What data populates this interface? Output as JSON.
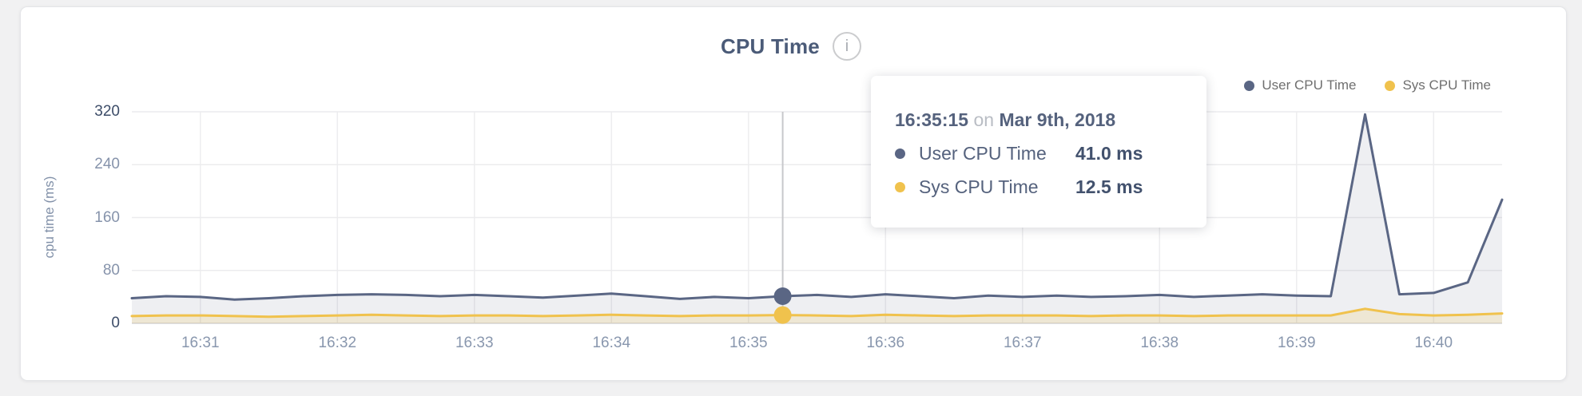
{
  "header": {
    "title": "CPU Time",
    "info_icon": "i"
  },
  "legend": {
    "items": [
      {
        "label": "User CPU Time",
        "color": "#5a6684"
      },
      {
        "label": "Sys CPU Time",
        "color": "#f0c24d"
      }
    ]
  },
  "tooltip": {
    "time": "16:35:15",
    "connector": "on",
    "date": "Mar 9th, 2018",
    "rows": [
      {
        "label": "User CPU Time",
        "value": "41.0 ms",
        "color": "#5a6684"
      },
      {
        "label": "Sys CPU Time",
        "value": "12.5 ms",
        "color": "#f0c24d"
      }
    ]
  },
  "chart_data": {
    "type": "area",
    "title": "CPU Time",
    "ylabel": "cpu time (ms)",
    "ylim": [
      0,
      320
    ],
    "y_ticks": [
      0,
      80,
      160,
      240,
      320
    ],
    "x_ticks": [
      "16:31",
      "16:32",
      "16:33",
      "16:34",
      "16:35",
      "16:36",
      "16:37",
      "16:38",
      "16:39",
      "16:40"
    ],
    "grid": true,
    "legend_position": "top-right",
    "times": [
      "16:30:30",
      "16:30:45",
      "16:31:00",
      "16:31:15",
      "16:31:30",
      "16:31:45",
      "16:32:00",
      "16:32:15",
      "16:32:30",
      "16:32:45",
      "16:33:00",
      "16:33:15",
      "16:33:30",
      "16:33:45",
      "16:34:00",
      "16:34:15",
      "16:34:30",
      "16:34:45",
      "16:35:00",
      "16:35:15",
      "16:35:30",
      "16:35:45",
      "16:36:00",
      "16:36:15",
      "16:36:30",
      "16:36:45",
      "16:37:00",
      "16:37:15",
      "16:37:30",
      "16:37:45",
      "16:38:00",
      "16:38:15",
      "16:38:30",
      "16:38:45",
      "16:39:00",
      "16:39:15",
      "16:39:30",
      "16:39:45",
      "16:40:00",
      "16:40:15",
      "16:40:30"
    ],
    "series": [
      {
        "name": "User CPU Time",
        "color": "#5a6684",
        "fill": "rgba(90,102,132,0.10)",
        "values": [
          38,
          41,
          40,
          36,
          38,
          41,
          43,
          44,
          43,
          41,
          43,
          41,
          39,
          42,
          45,
          41,
          37,
          40,
          38,
          41,
          43,
          40,
          44,
          41,
          38,
          42,
          40,
          42,
          40,
          41,
          43,
          40,
          42,
          44,
          42,
          41,
          316,
          44,
          46,
          62,
          187
        ]
      },
      {
        "name": "Sys CPU Time",
        "color": "#f0c24d",
        "fill": "rgba(240,194,77,0.18)",
        "values": [
          11,
          12,
          12,
          11,
          10,
          11,
          12,
          13,
          12,
          11,
          12,
          12,
          11,
          12,
          13,
          12,
          11,
          12,
          12,
          12.5,
          12,
          11,
          13,
          12,
          11,
          12,
          12,
          12,
          11,
          12,
          12,
          11,
          12,
          12,
          12,
          12,
          22,
          14,
          12,
          13,
          15
        ]
      }
    ],
    "hover": {
      "time": "16:35:15",
      "date": "Mar 9th, 2018",
      "values": {
        "User CPU Time": 41.0,
        "Sys CPU Time": 12.5
      },
      "crosshair_color": "#c7c8cb"
    }
  }
}
